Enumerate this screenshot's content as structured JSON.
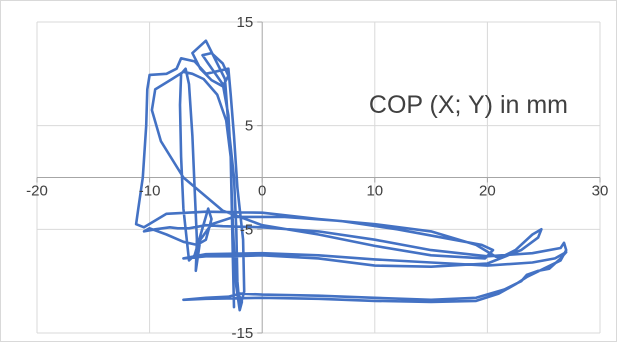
{
  "chart_data": {
    "type": "scatter",
    "title": "COP (X; Y) in mm",
    "xlabel": "",
    "ylabel": "",
    "xlim": [
      -20,
      30
    ],
    "ylim": [
      -15,
      15
    ],
    "x_ticks": [
      -20,
      -10,
      0,
      10,
      20,
      30
    ],
    "y_ticks": [
      -15,
      -5,
      5,
      15
    ],
    "x_tick_labels": [
      "-20",
      "-10",
      "0",
      "10",
      "20",
      "30"
    ],
    "y_tick_labels": [
      "-15",
      "-5",
      "5",
      "15"
    ],
    "grid": true,
    "legend": "none",
    "line_color": "#4472c4",
    "series": [
      {
        "values": [
          {
            "x": -2.5,
            "y": -12.5
          },
          {
            "x": -2.6,
            "y": -8.0
          },
          {
            "x": -2.7,
            "y": -3.0
          },
          {
            "x": -2.8,
            "y": 2.0
          },
          {
            "x": -3.0,
            "y": 6.0
          },
          {
            "x": -3.5,
            "y": 9.0
          },
          {
            "x": -4.8,
            "y": 11.0
          },
          {
            "x": -5.3,
            "y": 11.8
          },
          {
            "x": -4.5,
            "y": 12.0
          },
          {
            "x": -3.5,
            "y": 11.0
          },
          {
            "x": -3.0,
            "y": 9.8
          },
          {
            "x": -3.5,
            "y": 8.8
          },
          {
            "x": -4.5,
            "y": 9.4
          },
          {
            "x": -5.5,
            "y": 10.5
          },
          {
            "x": -6.2,
            "y": 12.0
          },
          {
            "x": -5.0,
            "y": 13.2
          },
          {
            "x": -3.3,
            "y": 9.5
          },
          {
            "x": -3.0,
            "y": 5.0
          },
          {
            "x": -2.5,
            "y": 0.0
          },
          {
            "x": -2.3,
            "y": -5.0
          },
          {
            "x": -2.2,
            "y": -10.0
          },
          {
            "x": -2.0,
            "y": -12.6
          },
          {
            "x": -1.6,
            "y": -11.0
          },
          {
            "x": -1.7,
            "y": -6.0
          },
          {
            "x": -2.2,
            "y": -1.0
          },
          {
            "x": -2.5,
            "y": 4.0
          },
          {
            "x": -2.8,
            "y": 8.0
          },
          {
            "x": -3.0,
            "y": 10.5
          },
          {
            "x": -5.0,
            "y": 10.0
          },
          {
            "x": -6.0,
            "y": 11.2
          },
          {
            "x": -7.2,
            "y": 11.5
          },
          {
            "x": -7.6,
            "y": 10.5
          },
          {
            "x": -8.5,
            "y": 10.0
          },
          {
            "x": -10.0,
            "y": 9.9
          },
          {
            "x": -10.2,
            "y": 8.5
          },
          {
            "x": -10.3,
            "y": 5.0
          },
          {
            "x": -10.6,
            "y": 0.0
          },
          {
            "x": -11.0,
            "y": -3.0
          },
          {
            "x": -11.2,
            "y": -4.5
          },
          {
            "x": -10.5,
            "y": -4.8
          },
          {
            "x": -8.5,
            "y": -3.5
          },
          {
            "x": -5.0,
            "y": -3.3
          },
          {
            "x": 0.0,
            "y": -3.4
          },
          {
            "x": 5.0,
            "y": -4.0
          },
          {
            "x": 10.0,
            "y": -4.5
          },
          {
            "x": 15.0,
            "y": -5.2
          },
          {
            "x": 19.0,
            "y": -6.5
          },
          {
            "x": 21.0,
            "y": -7.8
          },
          {
            "x": 22.5,
            "y": -7.0
          },
          {
            "x": 24.0,
            "y": -5.5
          },
          {
            "x": 24.8,
            "y": -5.0
          },
          {
            "x": 24.5,
            "y": -5.8
          },
          {
            "x": 23.0,
            "y": -7.0
          },
          {
            "x": 20.0,
            "y": -8.3
          },
          {
            "x": 15.0,
            "y": -8.6
          },
          {
            "x": 10.0,
            "y": -8.5
          },
          {
            "x": 5.0,
            "y": -7.8
          },
          {
            "x": 0.0,
            "y": -7.5
          },
          {
            "x": -3.0,
            "y": -7.6
          },
          {
            "x": -5.0,
            "y": -7.6
          },
          {
            "x": -7.0,
            "y": -7.8
          },
          {
            "x": -5.0,
            "y": -7.4
          },
          {
            "x": 0.0,
            "y": -7.3
          },
          {
            "x": 5.0,
            "y": -7.5
          },
          {
            "x": 10.0,
            "y": -7.9
          },
          {
            "x": 15.0,
            "y": -8.2
          },
          {
            "x": 20.0,
            "y": -8.5
          },
          {
            "x": 24.0,
            "y": -8.2
          },
          {
            "x": 26.0,
            "y": -7.8
          },
          {
            "x": 27.0,
            "y": -7.2
          },
          {
            "x": 26.5,
            "y": -7.8
          },
          {
            "x": 25.5,
            "y": -8.8
          },
          {
            "x": 24.5,
            "y": -9.0
          },
          {
            "x": 23.5,
            "y": -9.4
          },
          {
            "x": 23.0,
            "y": -10.0
          },
          {
            "x": 21.5,
            "y": -10.8
          },
          {
            "x": 19.0,
            "y": -11.6
          },
          {
            "x": 15.0,
            "y": -11.8
          },
          {
            "x": 10.0,
            "y": -11.6
          },
          {
            "x": 5.0,
            "y": -11.4
          },
          {
            "x": 0.0,
            "y": -11.3
          },
          {
            "x": -2.0,
            "y": -11.2
          },
          {
            "x": -3.0,
            "y": -11.5
          },
          {
            "x": -5.0,
            "y": -11.6
          },
          {
            "x": -7.0,
            "y": -11.8
          },
          {
            "x": -5.0,
            "y": -11.7
          },
          {
            "x": 0.0,
            "y": -11.6
          },
          {
            "x": 5.0,
            "y": -11.7
          },
          {
            "x": 10.0,
            "y": -11.9
          },
          {
            "x": 15.0,
            "y": -12.0
          },
          {
            "x": 19.0,
            "y": -11.9
          },
          {
            "x": 21.0,
            "y": -11.2
          },
          {
            "x": 22.5,
            "y": -10.3
          },
          {
            "x": 23.5,
            "y": -9.6
          },
          {
            "x": 25.0,
            "y": -8.8
          },
          {
            "x": 26.5,
            "y": -8.0
          },
          {
            "x": 27.0,
            "y": -7.0
          },
          {
            "x": 26.8,
            "y": -6.3
          },
          {
            "x": 26.5,
            "y": -6.8
          },
          {
            "x": 24.0,
            "y": -7.3
          },
          {
            "x": 20.0,
            "y": -7.6
          },
          {
            "x": 15.0,
            "y": -7.0
          },
          {
            "x": 10.0,
            "y": -6.0
          },
          {
            "x": 5.0,
            "y": -5.2
          },
          {
            "x": 0.0,
            "y": -4.8
          },
          {
            "x": -3.5,
            "y": -4.7
          },
          {
            "x": -5.0,
            "y": -4.6
          },
          {
            "x": -6.5,
            "y": -4.9
          },
          {
            "x": -7.5,
            "y": -4.9
          },
          {
            "x": -8.2,
            "y": -4.8
          },
          {
            "x": -9.5,
            "y": -5.0
          },
          {
            "x": -10.5,
            "y": -5.2
          },
          {
            "x": -10.0,
            "y": -4.9
          },
          {
            "x": -8.5,
            "y": -5.5
          },
          {
            "x": -7.0,
            "y": -6.2
          },
          {
            "x": -5.8,
            "y": -6.5
          },
          {
            "x": -5.0,
            "y": -6.0
          },
          {
            "x": -4.5,
            "y": -4.0
          },
          {
            "x": -4.8,
            "y": -3.0
          },
          {
            "x": -6.0,
            "y": -7.5
          },
          {
            "x": -6.5,
            "y": -8.0
          },
          {
            "x": -7.0,
            "y": -3.0
          },
          {
            "x": -7.2,
            "y": 2.0
          },
          {
            "x": -7.3,
            "y": 7.0
          },
          {
            "x": -7.2,
            "y": 10.0
          },
          {
            "x": -6.8,
            "y": 10.5
          },
          {
            "x": -6.5,
            "y": 9.0
          },
          {
            "x": -6.2,
            "y": 4.0
          },
          {
            "x": -6.0,
            "y": -1.0
          },
          {
            "x": -5.8,
            "y": -6.0
          },
          {
            "x": -5.9,
            "y": -9.0
          },
          {
            "x": -5.5,
            "y": -6.0
          },
          {
            "x": -4.5,
            "y": -4.5
          },
          {
            "x": -2.5,
            "y": -3.8
          },
          {
            "x": 2.0,
            "y": -3.8
          },
          {
            "x": 7.0,
            "y": -4.2
          },
          {
            "x": 12.0,
            "y": -5.0
          },
          {
            "x": 17.0,
            "y": -6.0
          },
          {
            "x": 19.5,
            "y": -6.5
          },
          {
            "x": 20.5,
            "y": -7.0
          },
          {
            "x": 19.8,
            "y": -7.8
          },
          {
            "x": 15.0,
            "y": -7.5
          },
          {
            "x": 10.0,
            "y": -6.6
          },
          {
            "x": 5.0,
            "y": -5.5
          },
          {
            "x": 0.0,
            "y": -4.6
          },
          {
            "x": -3.5,
            "y": -3.2
          },
          {
            "x": -7.0,
            "y": 0.0
          },
          {
            "x": -9.0,
            "y": 3.5
          },
          {
            "x": -9.8,
            "y": 6.5
          },
          {
            "x": -9.5,
            "y": 8.5
          },
          {
            "x": -8.0,
            "y": 9.5
          },
          {
            "x": -7.0,
            "y": 10.2
          },
          {
            "x": -6.2,
            "y": 10.0
          },
          {
            "x": -5.2,
            "y": 9.5
          },
          {
            "x": -4.0,
            "y": 8.0
          },
          {
            "x": -3.2,
            "y": 5.5
          },
          {
            "x": -2.8,
            "y": 2.0
          },
          {
            "x": -2.7,
            "y": -2.0
          },
          {
            "x": -2.5,
            "y": -7.0
          },
          {
            "x": -2.3,
            "y": -10.5
          },
          {
            "x": -2.0,
            "y": -12.8
          },
          {
            "x": -1.8,
            "y": -12.0
          },
          {
            "x": -2.2,
            "y": -11.0
          }
        ]
      }
    ]
  }
}
